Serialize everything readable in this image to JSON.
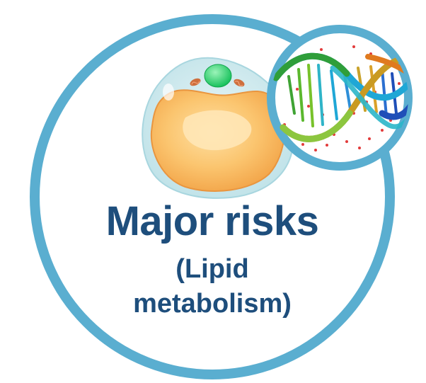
{
  "badge": {
    "title": "Major risks",
    "subtitle_line1": "(Lipid",
    "subtitle_line2": "metabolism)"
  },
  "icons": {
    "main": "fat-cell-adipocyte-icon",
    "inset": "dna-double-helix-icon"
  },
  "colors": {
    "ring": "#5aaed0",
    "text": "#1e4e7c",
    "lipid_droplet": "#f8bd65",
    "nucleus": "#33dd7a",
    "mitochondria": "#ce6f3d",
    "cytoplasm": "#c7e7ec"
  }
}
